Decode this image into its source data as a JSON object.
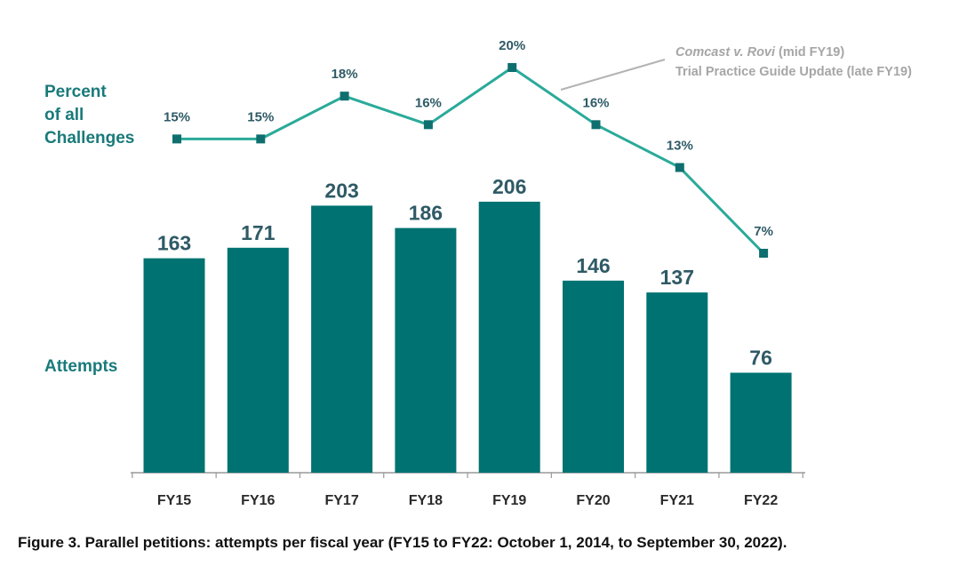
{
  "labels": {
    "percent_line1": "Percent",
    "percent_line2": "of all",
    "percent_line3": "Challenges",
    "attempts": "Attempts"
  },
  "annotation": {
    "case": "Comcast v. Rovi",
    "case_suffix": " (mid FY19)",
    "line2": "Trial Practice Guide Update (late FY19)"
  },
  "caption": "Figure 3. Parallel petitions: attempts per fiscal year (FY15 to FY22: October 1, 2014, to September 30, 2022).",
  "colors": {
    "bar": "#007272",
    "line": "#2aaa9a",
    "marker": "#0f6f6f",
    "label_text": "#2f5a66",
    "side_label": "#1a7a7a",
    "annotation": "#a6a6a6",
    "axis": "#999999"
  },
  "chart_data": [
    {
      "type": "bar",
      "categories": [
        "FY15",
        "FY16",
        "FY17",
        "FY18",
        "FY19",
        "FY20",
        "FY21",
        "FY22"
      ],
      "values": [
        163,
        171,
        203,
        186,
        206,
        146,
        137,
        76
      ],
      "data_labels": [
        "163",
        "171",
        "203",
        "186",
        "206",
        "146",
        "137",
        "76"
      ],
      "ylabel": "Attempts",
      "ylim": [
        0,
        206
      ]
    },
    {
      "type": "line",
      "categories": [
        "FY15",
        "FY16",
        "FY17",
        "FY18",
        "FY19",
        "FY20",
        "FY21",
        "FY22"
      ],
      "values": [
        15,
        15,
        18,
        16,
        20,
        16,
        13,
        7
      ],
      "data_labels": [
        "15%",
        "15%",
        "18%",
        "16%",
        "20%",
        "16%",
        "13%",
        "7%"
      ],
      "ylabel": "Percent of all Challenges",
      "ylim": [
        7,
        20
      ]
    }
  ]
}
